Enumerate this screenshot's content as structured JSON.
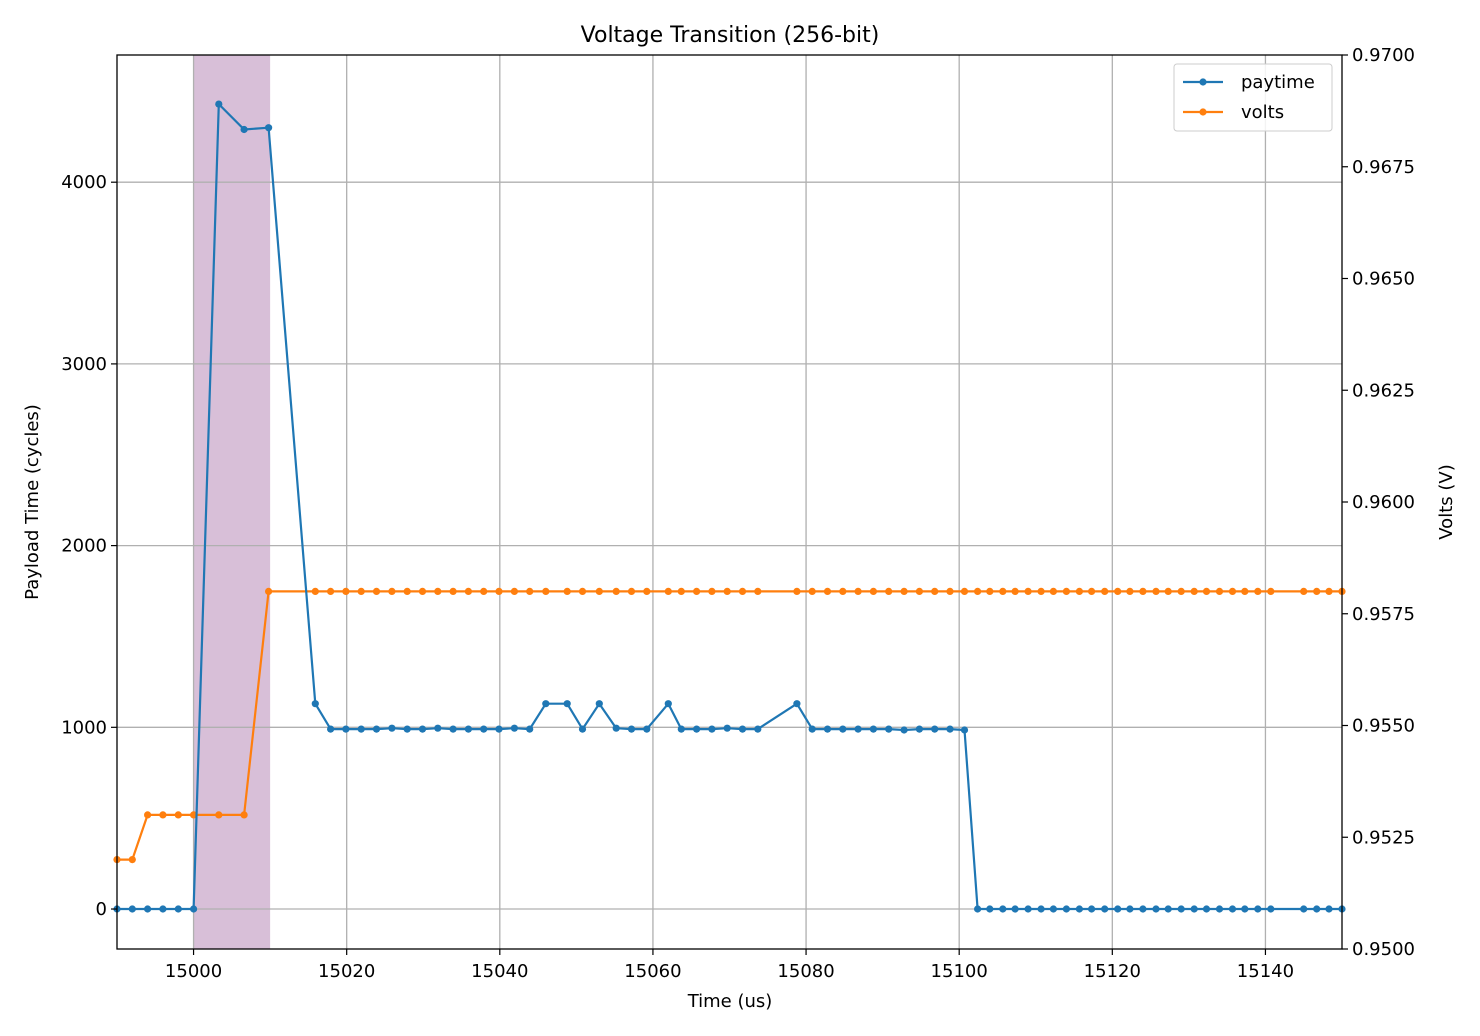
{
  "chart_data": {
    "type": "line",
    "title": "Voltage Transition (256-bit)",
    "xlabel": "Time (us)",
    "ylabel_left": "Payload Time (cycles)",
    "ylabel_right": "Volts (V)",
    "xlim": [
      14990,
      15150
    ],
    "ylim_left": [
      -220,
      4700
    ],
    "ylim_right": [
      0.95,
      0.97
    ],
    "x_ticks": [
      15000,
      15020,
      15040,
      15060,
      15080,
      15100,
      15120,
      15140
    ],
    "y_ticks_left": [
      0,
      1000,
      2000,
      3000,
      4000
    ],
    "y_ticks_right": [
      "0.9500",
      "0.9525",
      "0.9550",
      "0.9575",
      "0.9600",
      "0.9625",
      "0.9650",
      "0.9675",
      "0.9700"
    ],
    "grid": true,
    "legend_position": "top-right",
    "shaded_region": {
      "x": [
        15000,
        15010
      ],
      "color": "#d8bfd8"
    },
    "colors": {
      "paytime": "#1f77b4",
      "volts": "#ff7f0e"
    },
    "series": [
      {
        "name": "paytime",
        "axis": "left",
        "x": [
          14990,
          14992,
          14994,
          14996,
          14998,
          15000,
          15003.3,
          15006.6,
          15009.8,
          15015.9,
          15017.9,
          15019.9,
          15021.9,
          15023.9,
          15025.9,
          15027.9,
          15029.9,
          15031.9,
          15033.9,
          15035.9,
          15037.9,
          15039.9,
          15041.9,
          15043.9,
          15046.0,
          15048.8,
          15050.8,
          15053.0,
          15055.2,
          15057.2,
          15059.2,
          15062.0,
          15063.7,
          15065.7,
          15067.7,
          15069.7,
          15071.7,
          15073.7,
          15078.8,
          15080.8,
          15082.8,
          15084.8,
          15086.8,
          15088.8,
          15090.8,
          15092.8,
          15094.8,
          15096.8,
          15098.8,
          15100.7,
          15102.4,
          15104.0,
          15105.7,
          15107.3,
          15109.0,
          15110.7,
          15112.3,
          15114.0,
          15115.7,
          15117.3,
          15119.0,
          15120.7,
          15122.3,
          15124.0,
          15125.7,
          15127.3,
          15129.0,
          15130.7,
          15132.3,
          15134.0,
          15135.7,
          15137.3,
          15139.0,
          15140.7,
          15145.0,
          15146.7,
          15148.3,
          15150.0
        ],
        "y": [
          0,
          0,
          0,
          0,
          0,
          0,
          4430,
          4290,
          4300,
          1130,
          990,
          990,
          990,
          990,
          995,
          990,
          990,
          995,
          990,
          990,
          990,
          990,
          995,
          990,
          1130,
          1130,
          990,
          1130,
          995,
          990,
          990,
          1130,
          990,
          990,
          990,
          995,
          990,
          990,
          1130,
          990,
          990,
          990,
          990,
          990,
          990,
          985,
          990,
          990,
          990,
          985,
          0,
          0,
          0,
          0,
          0,
          0,
          0,
          0,
          0,
          0,
          0,
          0,
          0,
          0,
          0,
          0,
          0,
          0,
          0,
          0,
          0,
          0,
          0,
          0,
          0,
          0,
          0,
          0
        ]
      },
      {
        "name": "volts",
        "axis": "right",
        "x": [
          14990,
          14992,
          14994,
          14996,
          14998,
          15000,
          15003.3,
          15006.6,
          15009.8,
          15015.9,
          15017.9,
          15019.9,
          15021.9,
          15023.9,
          15025.9,
          15027.9,
          15029.9,
          15031.9,
          15033.9,
          15035.9,
          15037.9,
          15039.9,
          15041.9,
          15043.9,
          15046.0,
          15048.8,
          15050.8,
          15053.0,
          15055.2,
          15057.2,
          15059.2,
          15062.0,
          15063.7,
          15065.7,
          15067.7,
          15069.7,
          15071.7,
          15073.7,
          15078.8,
          15080.8,
          15082.8,
          15084.8,
          15086.8,
          15088.8,
          15090.8,
          15092.8,
          15094.8,
          15096.8,
          15098.8,
          15100.7,
          15102.4,
          15104.0,
          15105.7,
          15107.3,
          15109.0,
          15110.7,
          15112.3,
          15114.0,
          15115.7,
          15117.3,
          15119.0,
          15120.7,
          15122.3,
          15124.0,
          15125.7,
          15127.3,
          15129.0,
          15130.7,
          15132.3,
          15134.0,
          15135.7,
          15137.3,
          15139.0,
          15140.7,
          15145.0,
          15146.7,
          15148.3,
          15150.0
        ],
        "y": [
          0.952,
          0.952,
          0.953,
          0.953,
          0.953,
          0.953,
          0.953,
          0.953,
          0.958,
          0.958,
          0.958,
          0.958,
          0.958,
          0.958,
          0.958,
          0.958,
          0.958,
          0.958,
          0.958,
          0.958,
          0.958,
          0.958,
          0.958,
          0.958,
          0.958,
          0.958,
          0.958,
          0.958,
          0.958,
          0.958,
          0.958,
          0.958,
          0.958,
          0.958,
          0.958,
          0.958,
          0.958,
          0.958,
          0.958,
          0.958,
          0.958,
          0.958,
          0.958,
          0.958,
          0.958,
          0.958,
          0.958,
          0.958,
          0.958,
          0.958,
          0.958,
          0.958,
          0.958,
          0.958,
          0.958,
          0.958,
          0.958,
          0.958,
          0.958,
          0.958,
          0.958,
          0.958,
          0.958,
          0.958,
          0.958,
          0.958,
          0.958,
          0.958,
          0.958,
          0.958,
          0.958,
          0.958,
          0.958,
          0.958,
          0.958,
          0.958,
          0.958,
          0.958
        ]
      }
    ]
  }
}
